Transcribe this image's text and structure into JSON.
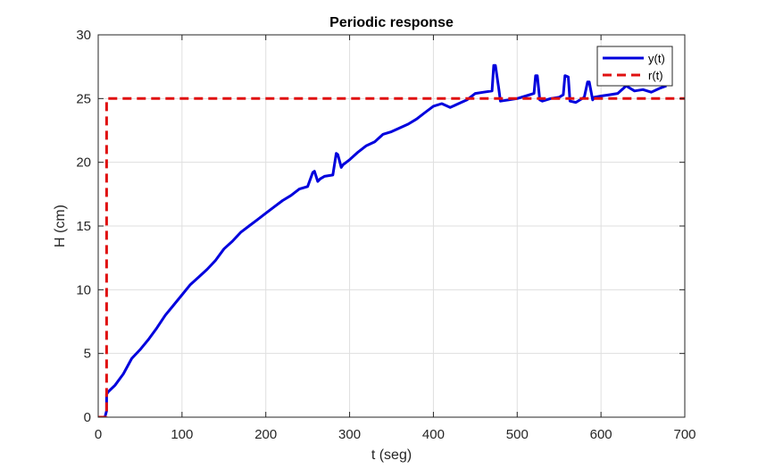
{
  "chart_data": {
    "type": "line",
    "title": "Periodic response",
    "xlabel": "t (seg)",
    "ylabel": "H (cm)",
    "xlim": [
      0,
      700
    ],
    "ylim": [
      0,
      30
    ],
    "xticks": [
      0,
      100,
      200,
      300,
      400,
      500,
      600,
      700
    ],
    "yticks": [
      0,
      5,
      10,
      15,
      20,
      25,
      30
    ],
    "grid": true,
    "legend_position": "top-right",
    "series": [
      {
        "name": "y(t)",
        "color": "#0000dd",
        "style": "solid",
        "x": [
          0,
          8,
          10,
          10,
          12,
          20,
          30,
          40,
          50,
          60,
          70,
          80,
          90,
          100,
          110,
          120,
          130,
          140,
          150,
          160,
          170,
          180,
          190,
          200,
          210,
          220,
          230,
          240,
          250,
          256,
          258,
          262,
          265,
          270,
          280,
          284,
          286,
          290,
          292,
          300,
          310,
          320,
          330,
          340,
          350,
          360,
          370,
          380,
          390,
          400,
          410,
          420,
          430,
          440,
          450,
          460,
          470,
          472,
          474,
          478,
          480,
          490,
          500,
          510,
          520,
          522,
          524,
          527,
          530,
          540,
          550,
          555,
          557,
          561,
          563,
          570,
          580,
          584,
          586,
          590,
          592,
          600,
          610,
          620,
          630,
          640,
          650,
          660,
          670,
          678
        ],
        "y": [
          0,
          0,
          0.5,
          1.8,
          2.0,
          2.5,
          3.4,
          4.6,
          5.3,
          6.1,
          7.0,
          8.0,
          8.8,
          9.6,
          10.4,
          11.0,
          11.6,
          12.3,
          13.2,
          13.8,
          14.5,
          15.0,
          15.5,
          16.0,
          16.5,
          17.0,
          17.4,
          17.9,
          18.1,
          19.2,
          19.3,
          18.5,
          18.7,
          18.9,
          19.0,
          20.7,
          20.6,
          19.6,
          19.8,
          20.2,
          20.8,
          21.3,
          21.6,
          22.2,
          22.4,
          22.7,
          23.0,
          23.4,
          23.9,
          24.4,
          24.6,
          24.3,
          24.6,
          24.9,
          25.4,
          25.5,
          25.6,
          27.6,
          27.6,
          25.8,
          24.8,
          24.9,
          25.0,
          25.2,
          25.4,
          26.8,
          26.8,
          24.9,
          24.8,
          25.0,
          25.1,
          25.3,
          26.8,
          26.7,
          24.8,
          24.7,
          25.1,
          26.3,
          26.3,
          24.9,
          25.1,
          25.2,
          25.3,
          25.4,
          26.0,
          25.6,
          25.7,
          25.5,
          25.8,
          26.0
        ]
      },
      {
        "name": "r(t)",
        "color": "#e01010",
        "style": "dashed",
        "x": [
          0,
          10,
          10,
          700
        ],
        "y": [
          0,
          0,
          25,
          25
        ]
      }
    ]
  }
}
